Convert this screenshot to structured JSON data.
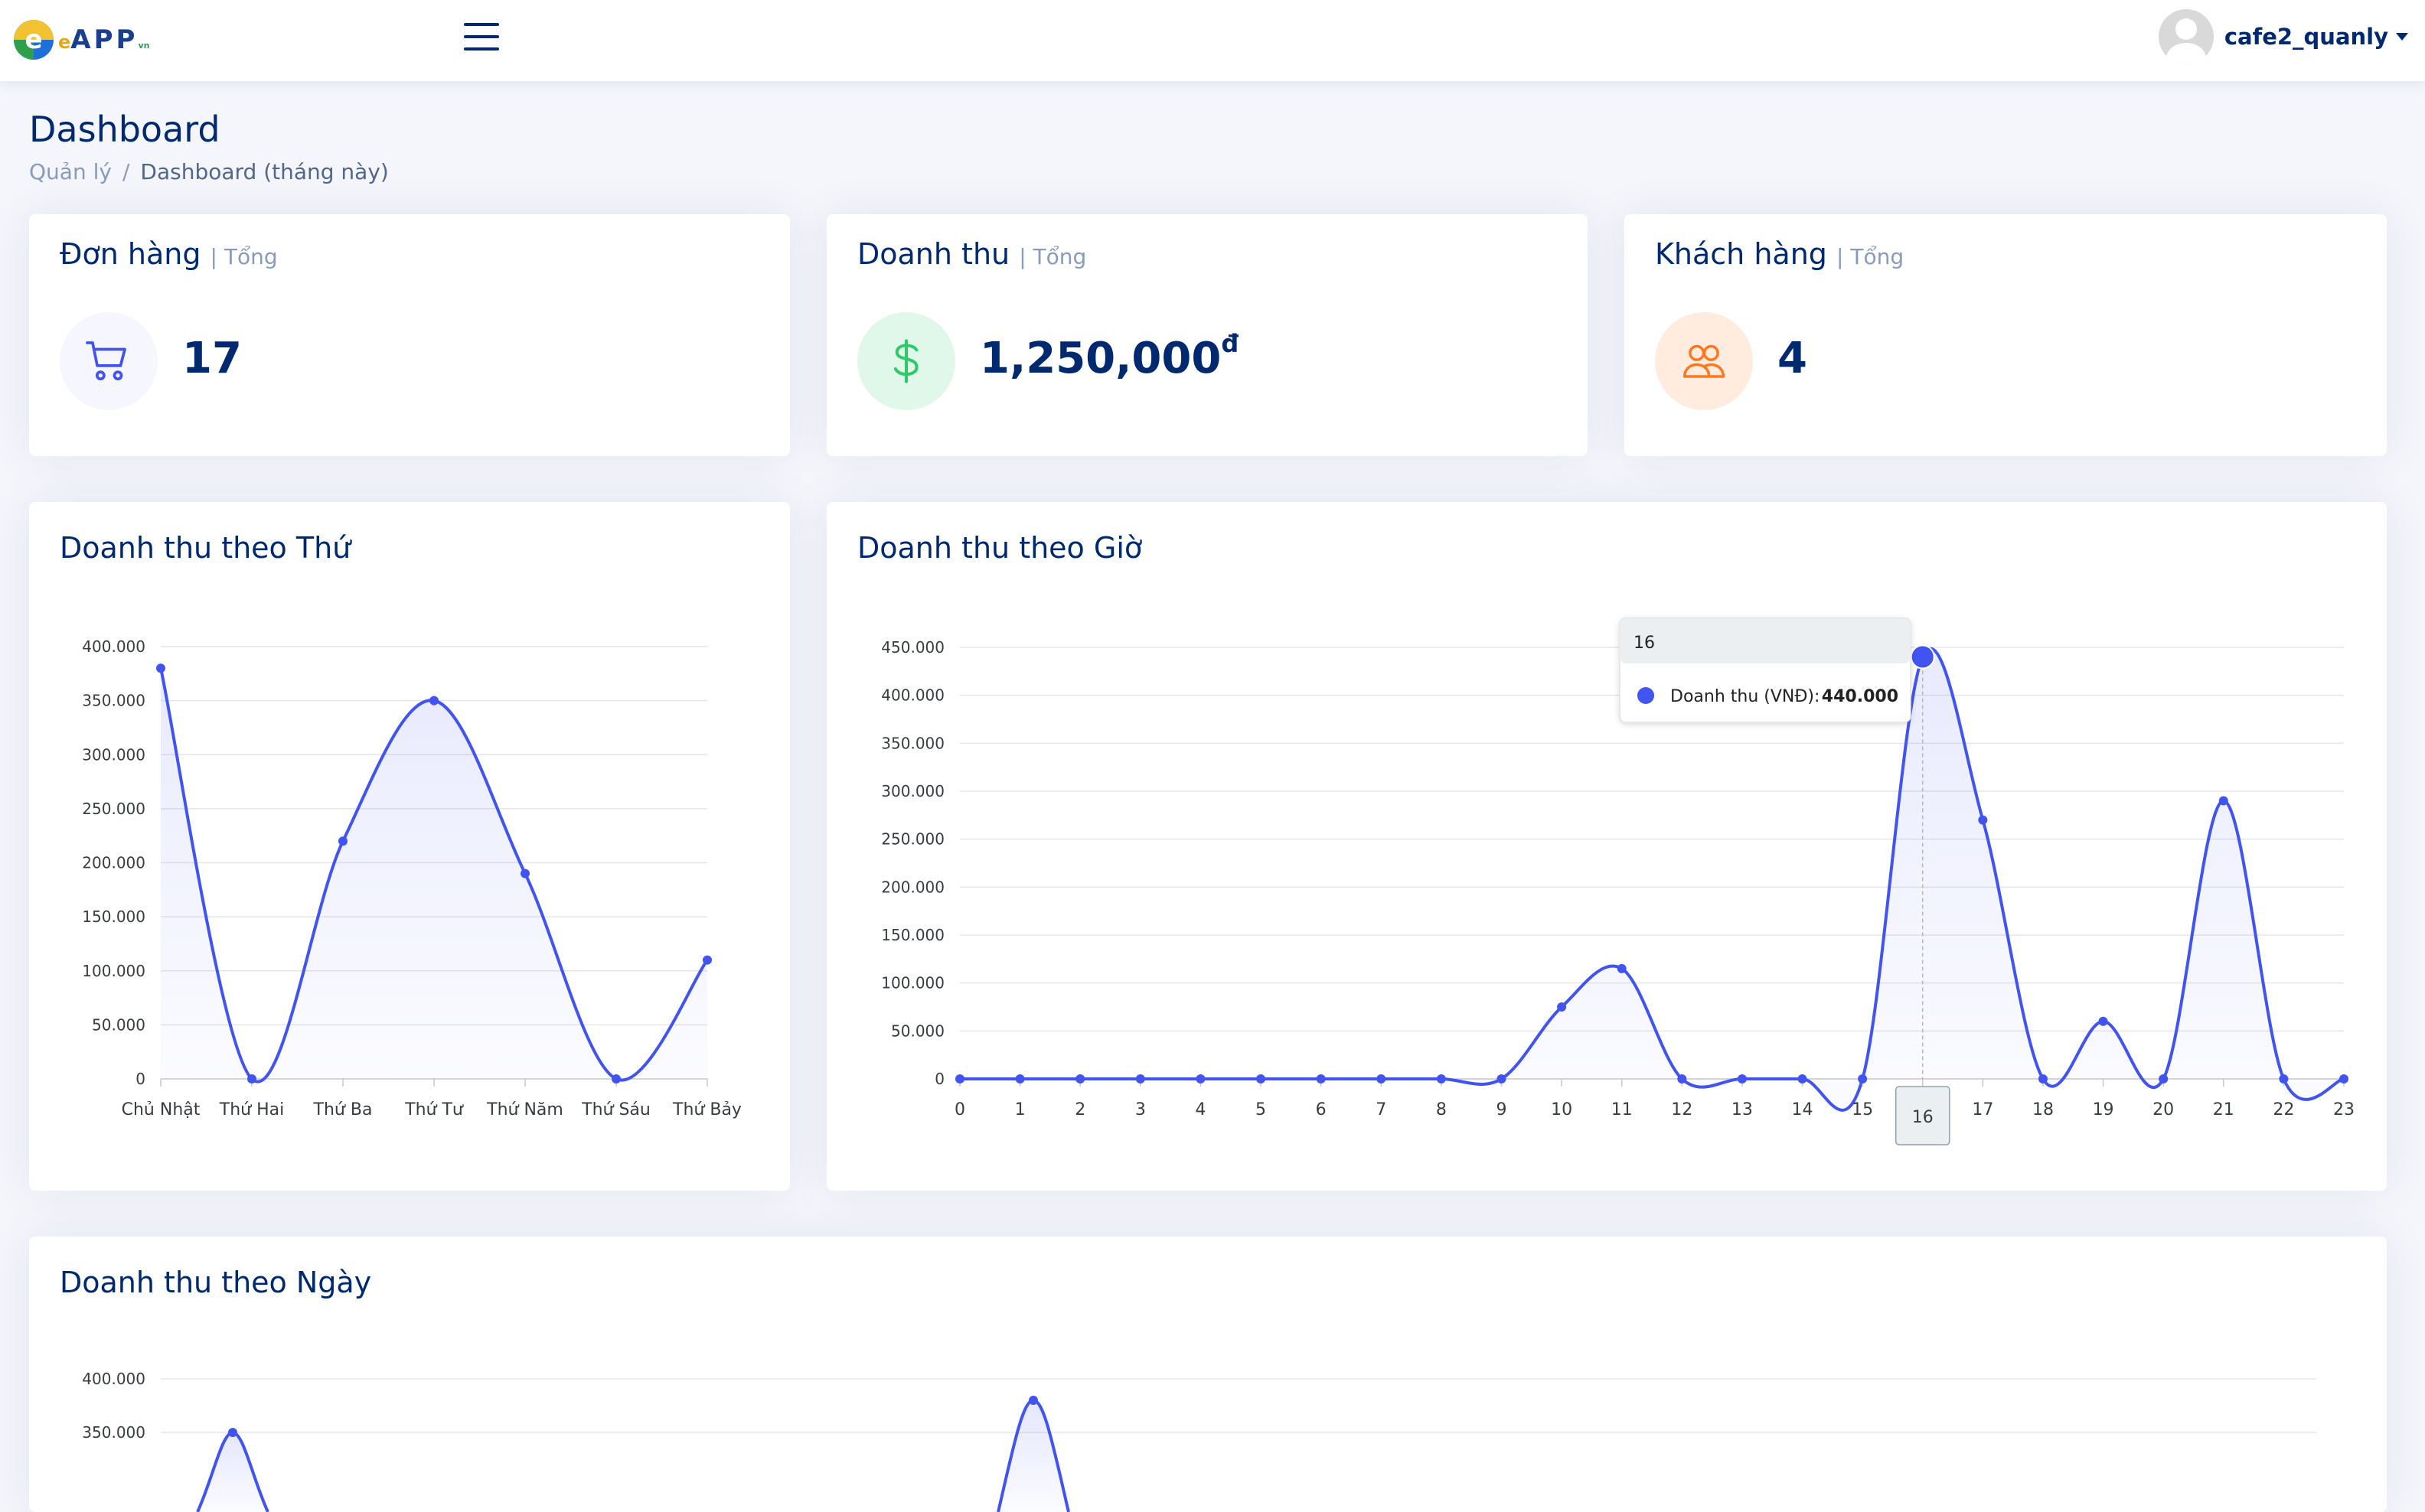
{
  "header": {
    "logo_text": "APP",
    "logo_prefix": "e",
    "logo_suffix": "vn",
    "username": "cafe2_quanly",
    "icons": {
      "menu": "hamburger-icon",
      "avatar": "user-avatar-icon",
      "dropdown": "caret-down-icon"
    }
  },
  "page": {
    "title": "Dashboard",
    "breadcrumb": [
      "Quản lý",
      "/",
      "Dashboard (tháng này)"
    ]
  },
  "stats": {
    "orders": {
      "title": "Đơn hàng",
      "sub": "| Tổng",
      "value": "17",
      "icon": "cart-icon",
      "icon_bg": "#f6f6fe",
      "icon_color": "#4154f1"
    },
    "revenue": {
      "title": "Doanh thu",
      "sub": "| Tổng",
      "value": "1,250,000",
      "currency": "đ",
      "icon": "dollar-icon",
      "icon_bg": "#e0f8e9",
      "icon_color": "#2eca6a"
    },
    "customers": {
      "title": "Khách hàng",
      "sub": "| Tổng",
      "value": "4",
      "icon": "people-icon",
      "icon_bg": "#ffecdf",
      "icon_color": "#ff771d"
    }
  },
  "colors": {
    "line": "#4154f1",
    "grid": "#e6e6e6",
    "axis": "#c8c8c8",
    "text": "#373d3f"
  },
  "chart_data": [
    {
      "type": "area",
      "title": "Doanh thu theo Thứ",
      "categories": [
        "Chủ Nhật",
        "Thứ Hai",
        "Thứ Ba",
        "Thứ Tư",
        "Thứ Năm",
        "Thứ Sáu",
        "Thứ Bảy"
      ],
      "values": [
        380000,
        0,
        220000,
        350000,
        190000,
        0,
        110000
      ],
      "ylim": [
        0,
        400000
      ],
      "yticks": [
        0,
        50000,
        100000,
        150000,
        200000,
        250000,
        300000,
        350000,
        400000
      ],
      "ytick_labels": [
        "0",
        "50.000",
        "100.000",
        "150.000",
        "200.000",
        "250.000",
        "300.000",
        "350.000",
        "400.000"
      ],
      "grid": true
    },
    {
      "type": "area",
      "title": "Doanh thu theo Giờ",
      "categories": [
        "0",
        "1",
        "2",
        "3",
        "4",
        "5",
        "6",
        "7",
        "8",
        "9",
        "10",
        "11",
        "12",
        "13",
        "14",
        "15",
        "16",
        "17",
        "18",
        "19",
        "20",
        "21",
        "22",
        "23"
      ],
      "values": [
        0,
        0,
        0,
        0,
        0,
        0,
        0,
        0,
        0,
        0,
        75000,
        115000,
        0,
        0,
        0,
        0,
        440000,
        270000,
        0,
        60000,
        0,
        290000,
        0,
        0
      ],
      "ylim": [
        0,
        450000
      ],
      "yticks": [
        0,
        50000,
        100000,
        150000,
        200000,
        250000,
        300000,
        350000,
        400000,
        450000
      ],
      "ytick_labels": [
        "0",
        "50.000",
        "100.000",
        "150.000",
        "200.000",
        "250.000",
        "300.000",
        "350.000",
        "400.000",
        "450.000"
      ],
      "grid": true,
      "tooltip": {
        "category": "16",
        "series_label": "Doanh thu (VNĐ):",
        "value_label": "440.000"
      }
    },
    {
      "type": "area",
      "title": "Doanh thu theo Ngày",
      "ylim": [
        0,
        400000
      ],
      "yticks": [
        350000,
        400000
      ],
      "ytick_labels": [
        "350.000",
        "400.000"
      ],
      "peaks": [
        350000,
        380000
      ],
      "grid": true
    }
  ]
}
